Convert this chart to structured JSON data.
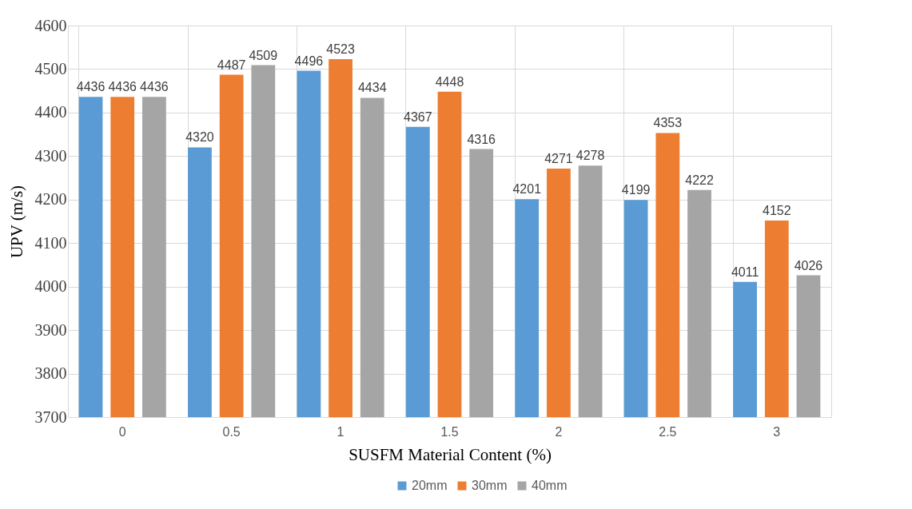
{
  "chart_data": {
    "type": "bar",
    "xlabel": "SUSFM Material Content (%)",
    "ylabel": "UPV  (m/s)",
    "categories": [
      "0",
      "0.5",
      "1",
      "1.5",
      "2",
      "2.5",
      "3"
    ],
    "series": [
      {
        "name": "20mm",
        "color": "#5b9bd5",
        "values": [
          4436,
          4320,
          4496,
          4367,
          4201,
          4199,
          4011
        ]
      },
      {
        "name": "30mm",
        "color": "#ed7d31",
        "values": [
          4436,
          4487,
          4523,
          4448,
          4271,
          4353,
          4152
        ]
      },
      {
        "name": "40mm",
        "color": "#a5a5a5",
        "values": [
          4436,
          4509,
          4434,
          4316,
          4278,
          4222,
          4026
        ]
      }
    ],
    "ylim": [
      3700,
      4600
    ],
    "yticks": [
      3700,
      3800,
      3900,
      4000,
      4100,
      4200,
      4300,
      4400,
      4500,
      4600
    ],
    "grid": true,
    "legend": "bottom",
    "data_labels": true
  }
}
